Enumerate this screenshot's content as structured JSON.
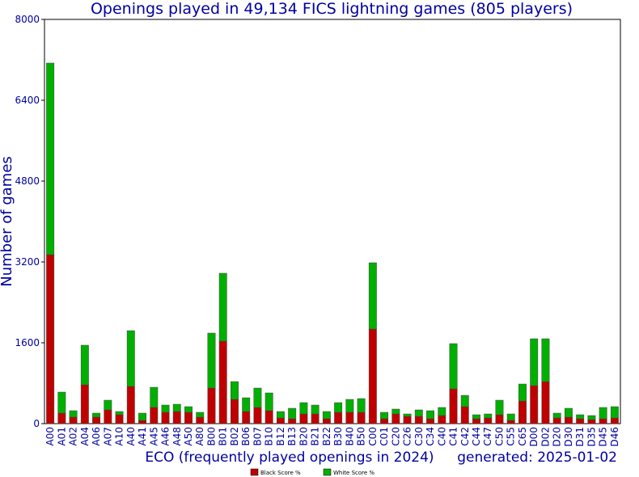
{
  "chart_data": {
    "type": "stacked-bar",
    "title": "Openings played in 49,134 FICS lightning games (805 players)",
    "y_label": "Number of games",
    "x_label": "ECO (frequently played openings in 2024)",
    "note": "generated: 2025-01-02",
    "categories": [
      "A00",
      "A01",
      "A02",
      "A04",
      "A06",
      "A07",
      "A10",
      "A40",
      "A41",
      "A45",
      "A46",
      "A48",
      "A50",
      "A80",
      "B00",
      "B01",
      "B02",
      "B06",
      "B07",
      "B10",
      "B12",
      "B13",
      "B20",
      "B21",
      "B22",
      "B30",
      "B40",
      "B50",
      "C00",
      "C01",
      "C20",
      "C26",
      "C30",
      "C34",
      "C40",
      "C41",
      "C42",
      "C44",
      "C47",
      "C50",
      "C55",
      "C65",
      "D00",
      "D02",
      "D20",
      "D30",
      "D31",
      "D35",
      "D45",
      "D46"
    ],
    "series": [
      {
        "name": "Black Score %",
        "color": "#c00000",
        "values": [
          3344,
          208,
          128,
          768,
          128,
          272,
          176,
          736,
          64,
          320,
          224,
          240,
          224,
          128,
          704,
          1632,
          480,
          240,
          320,
          256,
          112,
          96,
          192,
          192,
          96,
          224,
          224,
          224,
          1872,
          96,
          192,
          144,
          144,
          96,
          160,
          688,
          336,
          96,
          112,
          176,
          64,
          448,
          752,
          832,
          112,
          128,
          96,
          80,
          96,
          112
        ]
      },
      {
        "name": "White Score %",
        "color": "#00b000",
        "values": [
          3792,
          416,
          128,
          784,
          80,
          192,
          64,
          1104,
          144,
          400,
          144,
          144,
          112,
          96,
          1088,
          1344,
          352,
          272,
          384,
          352,
          128,
          208,
          224,
          176,
          144,
          192,
          256,
          272,
          1312,
          128,
          96,
          48,
          128,
          160,
          160,
          896,
          224,
          80,
          80,
          288,
          128,
          336,
          928,
          848,
          96,
          176,
          80,
          80,
          224,
          224
        ]
      }
    ],
    "ylim": [
      0,
      8000
    ],
    "yticks": [
      0,
      1600,
      3200,
      4800,
      6400,
      8000
    ],
    "grid": false
  }
}
